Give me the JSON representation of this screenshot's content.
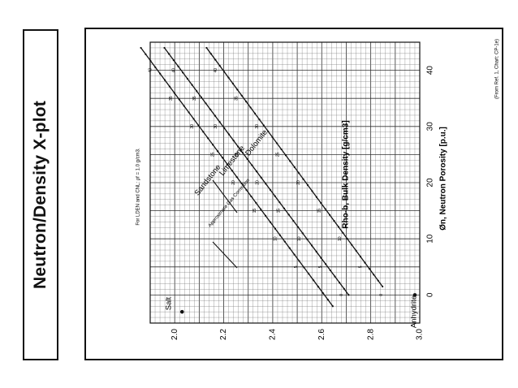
{
  "page": {
    "title": "Neutron/Density X-plot"
  },
  "chart_data": {
    "type": "line",
    "xlabel": "Øn, Neutron Porosity [p.u.]",
    "ylabel": "Rho-b, Bulk Density [g/cm3]",
    "xlim": [
      -5,
      45
    ],
    "ylim": [
      3.0,
      1.9
    ],
    "x_ticks": [
      "0",
      "10",
      "20",
      "30",
      "40"
    ],
    "y_ticks": [
      "2.0",
      "2.2",
      "2.4",
      "2.6",
      "2.8",
      "3.0"
    ],
    "grid": true,
    "note": "For LDEN and CNL: ρf = 1.0 g/cm3.",
    "source": "(From Ref. 1, Chart: CP-1e)",
    "series": [
      {
        "name": "Sandstone",
        "x": [
          -2,
          44
        ],
        "y": [
          2.645,
          1.862
        ]
      },
      {
        "name": "Limestone",
        "x": [
          0,
          44
        ],
        "y": [
          2.71,
          1.958
        ]
      },
      {
        "name": "Dolomite",
        "x": [
          1.5,
          44
        ],
        "y": [
          2.848,
          2.13
        ]
      }
    ],
    "annotations": {
      "salt": "Salt",
      "anhydrite": "Anhydrite",
      "gas_correction": "Approximate Gas Correction",
      "sandstone_porosity_labels": [
        "5",
        "10",
        "15",
        "20",
        "25",
        "30",
        "35",
        "40"
      ],
      "limestone_porosity_labels": [
        "0",
        "5",
        "10",
        "15",
        "20",
        "25",
        "30",
        "35",
        "40"
      ],
      "dolomite_porosity_labels": [
        "0",
        "5",
        "10",
        "15",
        "20",
        "25",
        "30",
        "35",
        "40"
      ]
    },
    "special_points": [
      {
        "name": "Anhydrite",
        "x": 0,
        "y": 2.98
      },
      {
        "name": "Salt",
        "x": -3,
        "y": 2.03
      }
    ]
  }
}
